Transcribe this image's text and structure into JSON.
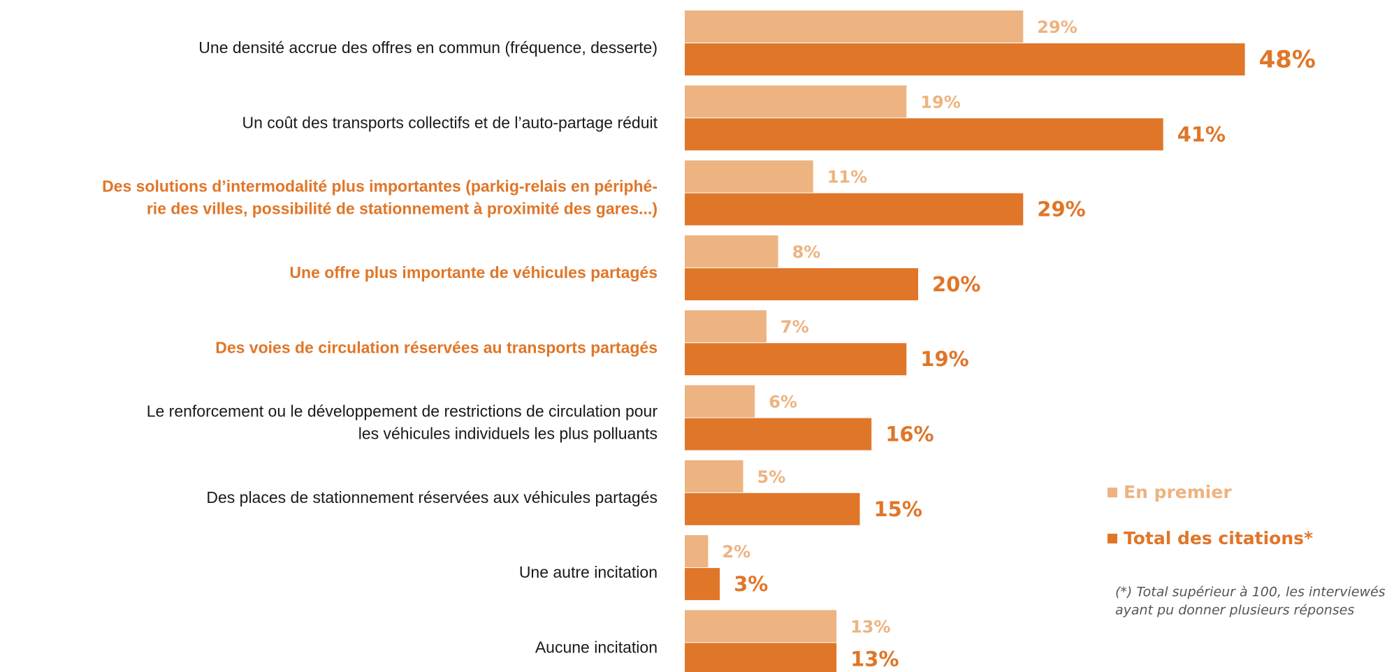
{
  "chart_data": {
    "type": "bar",
    "orientation": "horizontal",
    "categories": [
      [
        "Une densité accrue des offres en commun (fréquence, desserte)"
      ],
      [
        "Un coût des transports collectifs et de l’auto-partage réduit"
      ],
      [
        "Des solutions d’intermodalité plus importantes (parkig-relais en périphé-",
        "rie des villes, possibilité de stationnement à proximité des gares...)"
      ],
      [
        "Une offre plus importante de véhicules partagés"
      ],
      [
        "Des voies de circulation réservées au transports partagés"
      ],
      [
        "Le renforcement ou le développement de restrictions de circulation pour",
        "les véhicules individuels les plus polluants"
      ],
      [
        "Des places de stationnement réservées aux véhicules partagés"
      ],
      [
        "Une autre incitation"
      ],
      [
        "Aucune incitation"
      ]
    ],
    "label_colors": [
      "#1a1a1a",
      "#1a1a1a",
      "#e07628",
      "#e07628",
      "#e07628",
      "#1a1a1a",
      "#1a1a1a",
      "#1a1a1a",
      "#1a1a1a"
    ],
    "series": [
      {
        "name": "En premier",
        "color": "#edb380",
        "values": [
          29,
          19,
          11,
          8,
          7,
          6,
          5,
          2,
          13
        ],
        "value_labels": [
          "29%",
          "19%",
          "11%",
          "8%",
          "7%",
          "6%",
          "5%",
          "2%",
          "13%"
        ]
      },
      {
        "name": "Total des citations*",
        "color": "#e07628",
        "values": [
          48,
          41,
          29,
          20,
          19,
          16,
          15,
          3,
          13
        ],
        "value_labels": [
          "48%",
          "41%",
          "29%",
          "20%",
          "19%",
          "16%",
          "15%",
          "3%",
          "13%"
        ]
      }
    ],
    "note": [
      "(*) Total supérieur à 100, les interviewés",
      "ayant pu donner plusieurs réponses"
    ]
  }
}
